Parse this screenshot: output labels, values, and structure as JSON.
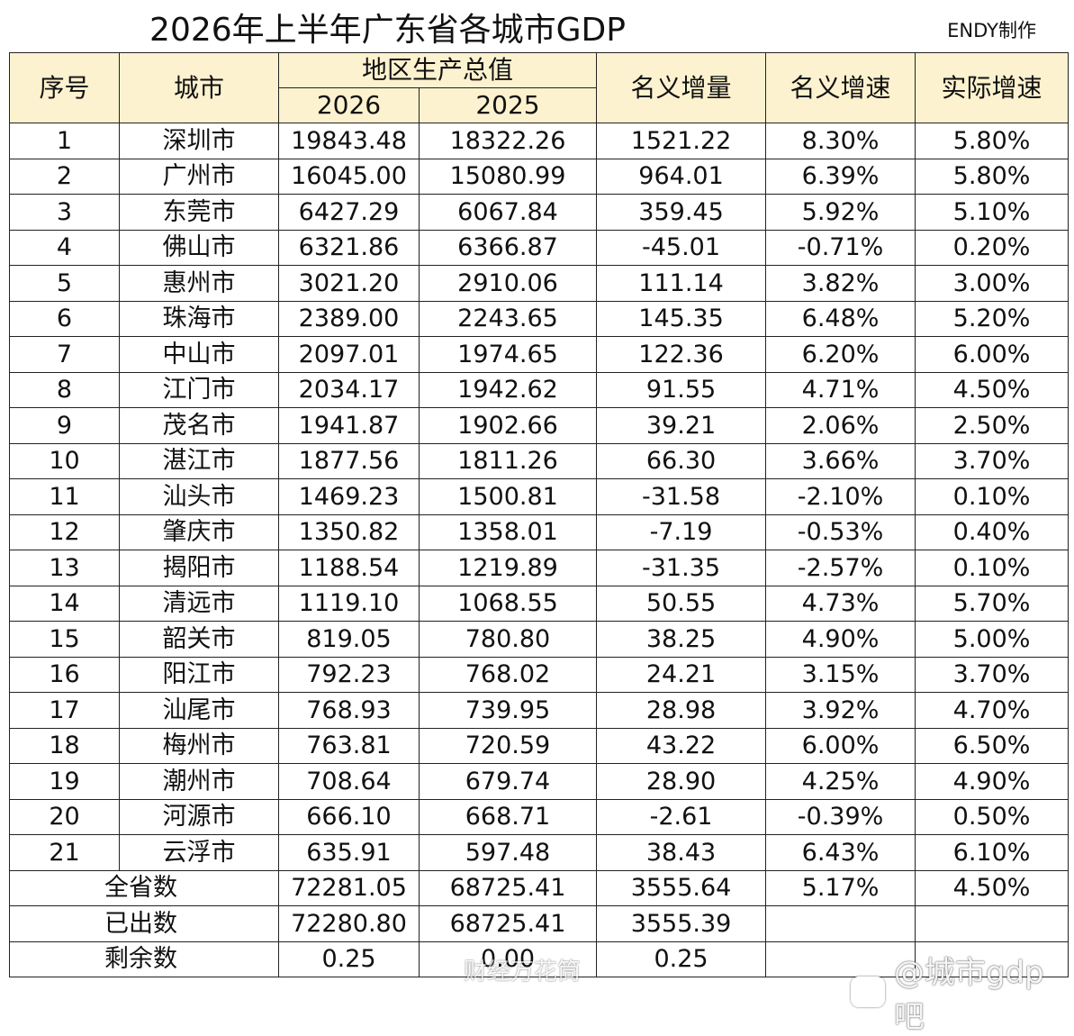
{
  "title": "2026年上半年广东省各城市GDP",
  "author": "ENDY制作",
  "headers": {
    "index": "序号",
    "city": "城市",
    "gdp_group": "地区生产总值",
    "year_2026": "2026",
    "year_2025": "2025",
    "nominal_increase": "名义增量",
    "nominal_growth": "名义增速",
    "real_growth": "实际增速"
  },
  "rows": [
    {
      "no": "1",
      "city": "深圳市",
      "gdp2026": "19843.48",
      "gdp2025": "18322.26",
      "increase": "1521.22",
      "nominal": "8.30%",
      "real": "5.80%"
    },
    {
      "no": "2",
      "city": "广州市",
      "gdp2026": "16045.00",
      "gdp2025": "15080.99",
      "increase": "964.01",
      "nominal": "6.39%",
      "real": "5.80%"
    },
    {
      "no": "3",
      "city": "东莞市",
      "gdp2026": "6427.29",
      "gdp2025": "6067.84",
      "increase": "359.45",
      "nominal": "5.92%",
      "real": "5.10%"
    },
    {
      "no": "4",
      "city": "佛山市",
      "gdp2026": "6321.86",
      "gdp2025": "6366.87",
      "increase": "-45.01",
      "nominal": "-0.71%",
      "real": "0.20%"
    },
    {
      "no": "5",
      "city": "惠州市",
      "gdp2026": "3021.20",
      "gdp2025": "2910.06",
      "increase": "111.14",
      "nominal": "3.82%",
      "real": "3.00%"
    },
    {
      "no": "6",
      "city": "珠海市",
      "gdp2026": "2389.00",
      "gdp2025": "2243.65",
      "increase": "145.35",
      "nominal": "6.48%",
      "real": "5.20%"
    },
    {
      "no": "7",
      "city": "中山市",
      "gdp2026": "2097.01",
      "gdp2025": "1974.65",
      "increase": "122.36",
      "nominal": "6.20%",
      "real": "6.00%"
    },
    {
      "no": "8",
      "city": "江门市",
      "gdp2026": "2034.17",
      "gdp2025": "1942.62",
      "increase": "91.55",
      "nominal": "4.71%",
      "real": "4.50%"
    },
    {
      "no": "9",
      "city": "茂名市",
      "gdp2026": "1941.87",
      "gdp2025": "1902.66",
      "increase": "39.21",
      "nominal": "2.06%",
      "real": "2.50%"
    },
    {
      "no": "10",
      "city": "湛江市",
      "gdp2026": "1877.56",
      "gdp2025": "1811.26",
      "increase": "66.30",
      "nominal": "3.66%",
      "real": "3.70%"
    },
    {
      "no": "11",
      "city": "汕头市",
      "gdp2026": "1469.23",
      "gdp2025": "1500.81",
      "increase": "-31.58",
      "nominal": "-2.10%",
      "real": "0.10%"
    },
    {
      "no": "12",
      "city": "肇庆市",
      "gdp2026": "1350.82",
      "gdp2025": "1358.01",
      "increase": "-7.19",
      "nominal": "-0.53%",
      "real": "0.40%"
    },
    {
      "no": "13",
      "city": "揭阳市",
      "gdp2026": "1188.54",
      "gdp2025": "1219.89",
      "increase": "-31.35",
      "nominal": "-2.57%",
      "real": "0.10%"
    },
    {
      "no": "14",
      "city": "清远市",
      "gdp2026": "1119.10",
      "gdp2025": "1068.55",
      "increase": "50.55",
      "nominal": "4.73%",
      "real": "5.70%"
    },
    {
      "no": "15",
      "city": "韶关市",
      "gdp2026": "819.05",
      "gdp2025": "780.80",
      "increase": "38.25",
      "nominal": "4.90%",
      "real": "5.00%"
    },
    {
      "no": "16",
      "city": "阳江市",
      "gdp2026": "792.23",
      "gdp2025": "768.02",
      "increase": "24.21",
      "nominal": "3.15%",
      "real": "3.70%"
    },
    {
      "no": "17",
      "city": "汕尾市",
      "gdp2026": "768.93",
      "gdp2025": "739.95",
      "increase": "28.98",
      "nominal": "3.92%",
      "real": "4.70%"
    },
    {
      "no": "18",
      "city": "梅州市",
      "gdp2026": "763.81",
      "gdp2025": "720.59",
      "increase": "43.22",
      "nominal": "6.00%",
      "real": "6.50%"
    },
    {
      "no": "19",
      "city": "潮州市",
      "gdp2026": "708.64",
      "gdp2025": "679.74",
      "increase": "28.90",
      "nominal": "4.25%",
      "real": "4.90%"
    },
    {
      "no": "20",
      "city": "河源市",
      "gdp2026": "666.10",
      "gdp2025": "668.71",
      "increase": "-2.61",
      "nominal": "-0.39%",
      "real": "0.50%"
    },
    {
      "no": "21",
      "city": "云浮市",
      "gdp2026": "635.91",
      "gdp2025": "597.48",
      "increase": "38.43",
      "nominal": "6.43%",
      "real": "6.10%"
    }
  ],
  "summary": [
    {
      "label": "全省数",
      "gdp2026": "72281.05",
      "gdp2025": "68725.41",
      "increase": "3555.64",
      "nominal": "5.17%",
      "real": "4.50%"
    },
    {
      "label": "已出数",
      "gdp2026": "72280.80",
      "gdp2025": "68725.41",
      "increase": "3555.39",
      "nominal": "",
      "real": ""
    },
    {
      "label": "剩余数",
      "gdp2026": "0.25",
      "gdp2025": "0.00",
      "increase": "0.25",
      "nominal": "",
      "real": ""
    }
  ],
  "watermarks": {
    "center": "财经万花筒",
    "right": "@城市gdp吧"
  },
  "colors": {
    "header_bg": "#fdf2cf",
    "border": "#222222"
  }
}
